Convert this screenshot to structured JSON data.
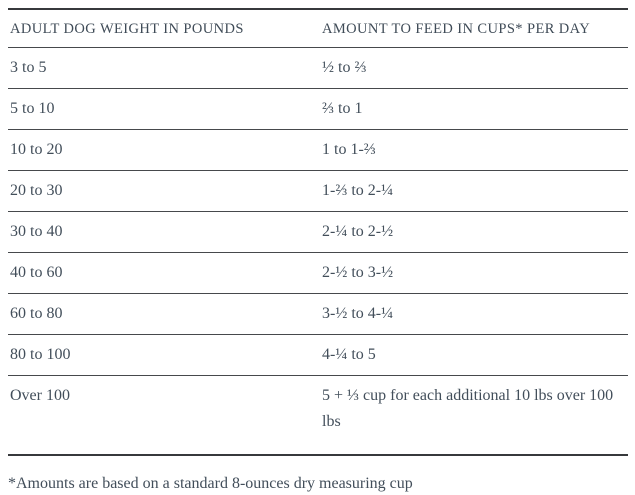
{
  "table": {
    "header": {
      "weight_label": "ADULT DOG WEIGHT IN POUNDS",
      "amount_label": "AMOUNT TO FEED IN CUPS* PER DAY"
    },
    "rows": [
      {
        "weight": "3 to 5",
        "amount": "½ to ⅔"
      },
      {
        "weight": "5 to 10",
        "amount": "⅔ to 1"
      },
      {
        "weight": "10 to 20",
        "amount": "1 to 1-⅔"
      },
      {
        "weight": "20 to 30",
        "amount": "1-⅔ to 2-¼"
      },
      {
        "weight": "30 to 40",
        "amount": "2-¼ to 2-½"
      },
      {
        "weight": "40 to 60",
        "amount": "2-½ to 3-½"
      },
      {
        "weight": "60 to 80",
        "amount": "3-½ to 4-¼"
      },
      {
        "weight": "80 to 100",
        "amount": "4-¼ to 5"
      },
      {
        "weight": "Over 100",
        "amount": "5 + ⅓ cup for each additional 10 lbs over 100 lbs"
      }
    ],
    "footnote": "*Amounts are based on a standard 8-ounces dry measuring cup"
  },
  "colors": {
    "background": "#ffffff",
    "text": "#424e5a",
    "border_outer": "#37393c",
    "border_inner": "#46494c"
  }
}
